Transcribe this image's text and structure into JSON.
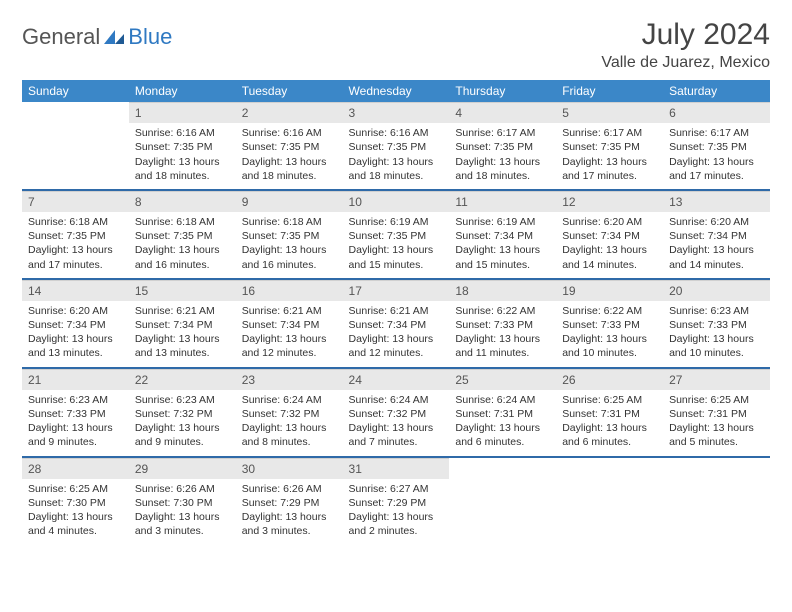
{
  "logo": {
    "general": "General",
    "blue": "Blue"
  },
  "title": {
    "month": "July 2024",
    "location": "Valle de Juarez, Mexico"
  },
  "colors": {
    "header_bg": "#3b87c8",
    "header_text": "#ffffff",
    "daynum_bg": "#e8e8e8",
    "week_divider": "#2f6aa8",
    "logo_blue": "#2f79c2"
  },
  "dayHeaders": [
    "Sunday",
    "Monday",
    "Tuesday",
    "Wednesday",
    "Thursday",
    "Friday",
    "Saturday"
  ],
  "weeks": [
    [
      null,
      {
        "n": "1",
        "sr": "Sunrise: 6:16 AM",
        "ss": "Sunset: 7:35 PM",
        "d1": "Daylight: 13 hours",
        "d2": "and 18 minutes."
      },
      {
        "n": "2",
        "sr": "Sunrise: 6:16 AM",
        "ss": "Sunset: 7:35 PM",
        "d1": "Daylight: 13 hours",
        "d2": "and 18 minutes."
      },
      {
        "n": "3",
        "sr": "Sunrise: 6:16 AM",
        "ss": "Sunset: 7:35 PM",
        "d1": "Daylight: 13 hours",
        "d2": "and 18 minutes."
      },
      {
        "n": "4",
        "sr": "Sunrise: 6:17 AM",
        "ss": "Sunset: 7:35 PM",
        "d1": "Daylight: 13 hours",
        "d2": "and 18 minutes."
      },
      {
        "n": "5",
        "sr": "Sunrise: 6:17 AM",
        "ss": "Sunset: 7:35 PM",
        "d1": "Daylight: 13 hours",
        "d2": "and 17 minutes."
      },
      {
        "n": "6",
        "sr": "Sunrise: 6:17 AM",
        "ss": "Sunset: 7:35 PM",
        "d1": "Daylight: 13 hours",
        "d2": "and 17 minutes."
      }
    ],
    [
      {
        "n": "7",
        "sr": "Sunrise: 6:18 AM",
        "ss": "Sunset: 7:35 PM",
        "d1": "Daylight: 13 hours",
        "d2": "and 17 minutes."
      },
      {
        "n": "8",
        "sr": "Sunrise: 6:18 AM",
        "ss": "Sunset: 7:35 PM",
        "d1": "Daylight: 13 hours",
        "d2": "and 16 minutes."
      },
      {
        "n": "9",
        "sr": "Sunrise: 6:18 AM",
        "ss": "Sunset: 7:35 PM",
        "d1": "Daylight: 13 hours",
        "d2": "and 16 minutes."
      },
      {
        "n": "10",
        "sr": "Sunrise: 6:19 AM",
        "ss": "Sunset: 7:35 PM",
        "d1": "Daylight: 13 hours",
        "d2": "and 15 minutes."
      },
      {
        "n": "11",
        "sr": "Sunrise: 6:19 AM",
        "ss": "Sunset: 7:34 PM",
        "d1": "Daylight: 13 hours",
        "d2": "and 15 minutes."
      },
      {
        "n": "12",
        "sr": "Sunrise: 6:20 AM",
        "ss": "Sunset: 7:34 PM",
        "d1": "Daylight: 13 hours",
        "d2": "and 14 minutes."
      },
      {
        "n": "13",
        "sr": "Sunrise: 6:20 AM",
        "ss": "Sunset: 7:34 PM",
        "d1": "Daylight: 13 hours",
        "d2": "and 14 minutes."
      }
    ],
    [
      {
        "n": "14",
        "sr": "Sunrise: 6:20 AM",
        "ss": "Sunset: 7:34 PM",
        "d1": "Daylight: 13 hours",
        "d2": "and 13 minutes."
      },
      {
        "n": "15",
        "sr": "Sunrise: 6:21 AM",
        "ss": "Sunset: 7:34 PM",
        "d1": "Daylight: 13 hours",
        "d2": "and 13 minutes."
      },
      {
        "n": "16",
        "sr": "Sunrise: 6:21 AM",
        "ss": "Sunset: 7:34 PM",
        "d1": "Daylight: 13 hours",
        "d2": "and 12 minutes."
      },
      {
        "n": "17",
        "sr": "Sunrise: 6:21 AM",
        "ss": "Sunset: 7:34 PM",
        "d1": "Daylight: 13 hours",
        "d2": "and 12 minutes."
      },
      {
        "n": "18",
        "sr": "Sunrise: 6:22 AM",
        "ss": "Sunset: 7:33 PM",
        "d1": "Daylight: 13 hours",
        "d2": "and 11 minutes."
      },
      {
        "n": "19",
        "sr": "Sunrise: 6:22 AM",
        "ss": "Sunset: 7:33 PM",
        "d1": "Daylight: 13 hours",
        "d2": "and 10 minutes."
      },
      {
        "n": "20",
        "sr": "Sunrise: 6:23 AM",
        "ss": "Sunset: 7:33 PM",
        "d1": "Daylight: 13 hours",
        "d2": "and 10 minutes."
      }
    ],
    [
      {
        "n": "21",
        "sr": "Sunrise: 6:23 AM",
        "ss": "Sunset: 7:33 PM",
        "d1": "Daylight: 13 hours",
        "d2": "and 9 minutes."
      },
      {
        "n": "22",
        "sr": "Sunrise: 6:23 AM",
        "ss": "Sunset: 7:32 PM",
        "d1": "Daylight: 13 hours",
        "d2": "and 9 minutes."
      },
      {
        "n": "23",
        "sr": "Sunrise: 6:24 AM",
        "ss": "Sunset: 7:32 PM",
        "d1": "Daylight: 13 hours",
        "d2": "and 8 minutes."
      },
      {
        "n": "24",
        "sr": "Sunrise: 6:24 AM",
        "ss": "Sunset: 7:32 PM",
        "d1": "Daylight: 13 hours",
        "d2": "and 7 minutes."
      },
      {
        "n": "25",
        "sr": "Sunrise: 6:24 AM",
        "ss": "Sunset: 7:31 PM",
        "d1": "Daylight: 13 hours",
        "d2": "and 6 minutes."
      },
      {
        "n": "26",
        "sr": "Sunrise: 6:25 AM",
        "ss": "Sunset: 7:31 PM",
        "d1": "Daylight: 13 hours",
        "d2": "and 6 minutes."
      },
      {
        "n": "27",
        "sr": "Sunrise: 6:25 AM",
        "ss": "Sunset: 7:31 PM",
        "d1": "Daylight: 13 hours",
        "d2": "and 5 minutes."
      }
    ],
    [
      {
        "n": "28",
        "sr": "Sunrise: 6:25 AM",
        "ss": "Sunset: 7:30 PM",
        "d1": "Daylight: 13 hours",
        "d2": "and 4 minutes."
      },
      {
        "n": "29",
        "sr": "Sunrise: 6:26 AM",
        "ss": "Sunset: 7:30 PM",
        "d1": "Daylight: 13 hours",
        "d2": "and 3 minutes."
      },
      {
        "n": "30",
        "sr": "Sunrise: 6:26 AM",
        "ss": "Sunset: 7:29 PM",
        "d1": "Daylight: 13 hours",
        "d2": "and 3 minutes."
      },
      {
        "n": "31",
        "sr": "Sunrise: 6:27 AM",
        "ss": "Sunset: 7:29 PM",
        "d1": "Daylight: 13 hours",
        "d2": "and 2 minutes."
      },
      null,
      null,
      null
    ]
  ]
}
